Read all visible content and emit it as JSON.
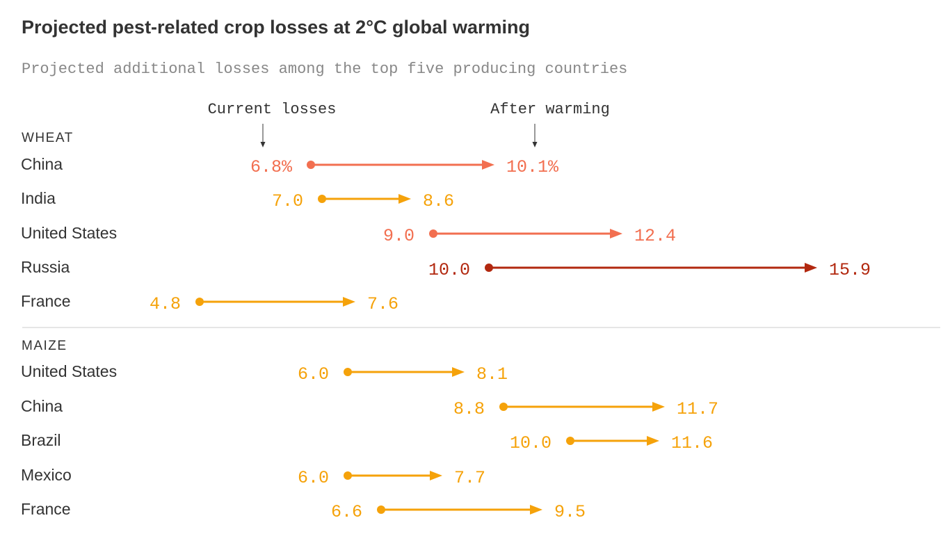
{
  "chart_data": {
    "type": "arrow-dumbbell",
    "title": "Projected pest-related crop losses at 2°C global warming",
    "subtitle": "Projected additional losses among the top five producing countries",
    "annotations": {
      "start": "Current losses",
      "end": "After warming"
    },
    "unit_suffix": "%",
    "colors": {
      "low": "#f5a20a",
      "mid": "#f26f50",
      "high": "#b2280f"
    },
    "sections": [
      {
        "name": "WHEAT",
        "rows": [
          {
            "country": "China",
            "current": 6.8,
            "after": 10.1,
            "current_label": "6.8%",
            "after_label": "10.1%",
            "color": "mid"
          },
          {
            "country": "India",
            "current": 7.0,
            "after": 8.6,
            "current_label": "7.0",
            "after_label": "8.6",
            "color": "low"
          },
          {
            "country": "United States",
            "current": 9.0,
            "after": 12.4,
            "current_label": "9.0",
            "after_label": "12.4",
            "color": "mid"
          },
          {
            "country": "Russia",
            "current": 10.0,
            "after": 15.9,
            "current_label": "10.0",
            "after_label": "15.9",
            "color": "high"
          },
          {
            "country": "France",
            "current": 4.8,
            "after": 7.6,
            "current_label": "4.8",
            "after_label": "7.6",
            "color": "low"
          }
        ]
      },
      {
        "name": "MAIZE",
        "rows": [
          {
            "country": "United States",
            "current": 6.0,
            "after": 8.1,
            "current_label": "6.0",
            "after_label": "8.1",
            "color": "low"
          },
          {
            "country": "China",
            "current": 8.8,
            "after": 11.7,
            "current_label": "8.8",
            "after_label": "11.7",
            "color": "low"
          },
          {
            "country": "Brazil",
            "current": 10.0,
            "after": 11.6,
            "current_label": "10.0",
            "after_label": "11.6",
            "color": "low"
          },
          {
            "country": "Mexico",
            "current": 6.0,
            "after": 7.7,
            "current_label": "6.0",
            "after_label": "7.7",
            "color": "low"
          },
          {
            "country": "France",
            "current": 6.6,
            "after": 9.5,
            "current_label": "6.6",
            "after_label": "9.5",
            "color": "low"
          }
        ]
      }
    ]
  }
}
